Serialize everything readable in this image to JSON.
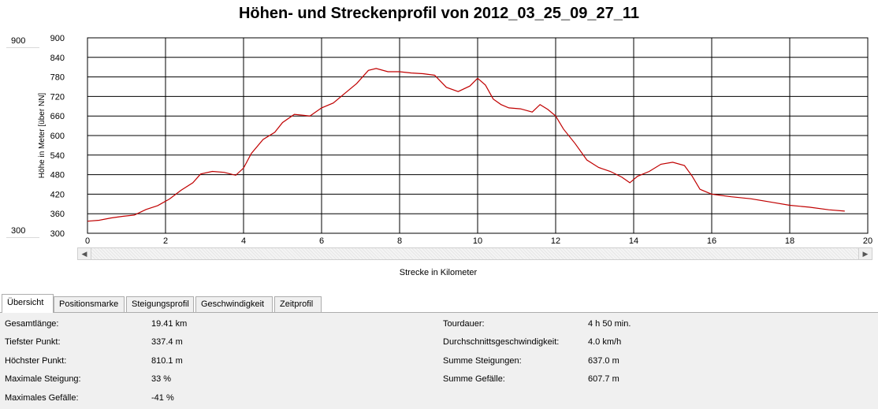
{
  "title": "Höhen- und Streckenprofil von 2012_03_25_09_27_11",
  "y_range_boxes": {
    "max": "900",
    "min": "300"
  },
  "x_axis_caption": "Strecke in Kilometer",
  "tabs": [
    {
      "label": "Übersicht",
      "active": true
    },
    {
      "label": "Positionsmarke",
      "active": false
    },
    {
      "label": "Steigungsprofil",
      "active": false
    },
    {
      "label": "Geschwindigkeit",
      "active": false
    },
    {
      "label": "Zeitprofil",
      "active": false
    }
  ],
  "stats_left": [
    {
      "label": "Gesamtlänge:",
      "value": "19.41 km"
    },
    {
      "label": "Tiefster Punkt:",
      "value": "337.4 m"
    },
    {
      "label": "Höchster Punkt:",
      "value": "810.1 m"
    },
    {
      "label": "Maximale Steigung:",
      "value": "33 %"
    },
    {
      "label": "Maximales Gefälle:",
      "value": "-41 %"
    }
  ],
  "stats_right": [
    {
      "label": "Tourdauer:",
      "value": "4 h 50 min."
    },
    {
      "label": "Durchschnittsgeschwindigkeit:",
      "value": "4.0 km/h"
    },
    {
      "label": "Summe Steigungen:",
      "value": "637.0 m"
    },
    {
      "label": "Summe Gefälle:",
      "value": "607.7 m"
    }
  ],
  "colors": {
    "line": "#c00000",
    "grid": "#000000",
    "background": "#ffffff",
    "panel": "#f0f0f0"
  },
  "chart_data": {
    "type": "line",
    "title": "Höhen- und Streckenprofil von 2012_03_25_09_27_11",
    "xlabel": "Strecke in Kilometer",
    "ylabel": "Höhe in Meter [über NN]",
    "xlim": [
      0,
      20
    ],
    "ylim": [
      300,
      900
    ],
    "xticks": [
      0,
      2,
      4,
      6,
      8,
      10,
      12,
      14,
      16,
      18,
      20
    ],
    "yticks": [
      300,
      360,
      420,
      480,
      540,
      600,
      660,
      720,
      780,
      840,
      900
    ],
    "grid": true,
    "series": [
      {
        "values": [
          [
            0,
            337
          ],
          [
            0.3,
            340
          ],
          [
            0.6,
            347
          ],
          [
            0.9,
            352
          ],
          [
            1.2,
            356
          ],
          [
            1.5,
            373
          ],
          [
            1.8,
            385
          ],
          [
            2.1,
            405
          ],
          [
            2.4,
            432
          ],
          [
            2.7,
            455
          ],
          [
            2.9,
            482
          ],
          [
            3.2,
            490
          ],
          [
            3.5,
            487
          ],
          [
            3.8,
            478
          ],
          [
            4.0,
            500
          ],
          [
            4.2,
            545
          ],
          [
            4.5,
            588
          ],
          [
            4.8,
            610
          ],
          [
            5.0,
            640
          ],
          [
            5.3,
            665
          ],
          [
            5.7,
            660
          ],
          [
            6.0,
            685
          ],
          [
            6.3,
            700
          ],
          [
            6.6,
            730
          ],
          [
            6.9,
            760
          ],
          [
            7.2,
            800
          ],
          [
            7.4,
            806
          ],
          [
            7.7,
            796
          ],
          [
            8.0,
            796
          ],
          [
            8.3,
            792
          ],
          [
            8.6,
            790
          ],
          [
            8.9,
            785
          ],
          [
            9.2,
            748
          ],
          [
            9.5,
            735
          ],
          [
            9.8,
            752
          ],
          [
            10.0,
            776
          ],
          [
            10.2,
            755
          ],
          [
            10.4,
            712
          ],
          [
            10.6,
            695
          ],
          [
            10.8,
            685
          ],
          [
            11.1,
            682
          ],
          [
            11.4,
            672
          ],
          [
            11.6,
            695
          ],
          [
            11.8,
            680
          ],
          [
            12.0,
            660
          ],
          [
            12.2,
            620
          ],
          [
            12.5,
            575
          ],
          [
            12.8,
            525
          ],
          [
            13.1,
            502
          ],
          [
            13.4,
            490
          ],
          [
            13.7,
            472
          ],
          [
            13.9,
            455
          ],
          [
            14.1,
            475
          ],
          [
            14.4,
            490
          ],
          [
            14.7,
            512
          ],
          [
            15.0,
            518
          ],
          [
            15.3,
            508
          ],
          [
            15.5,
            475
          ],
          [
            15.7,
            435
          ],
          [
            16.0,
            420
          ],
          [
            16.5,
            412
          ],
          [
            17.0,
            406
          ],
          [
            17.5,
            396
          ],
          [
            18.0,
            386
          ],
          [
            18.5,
            380
          ],
          [
            19.0,
            372
          ],
          [
            19.41,
            368
          ]
        ]
      }
    ]
  }
}
